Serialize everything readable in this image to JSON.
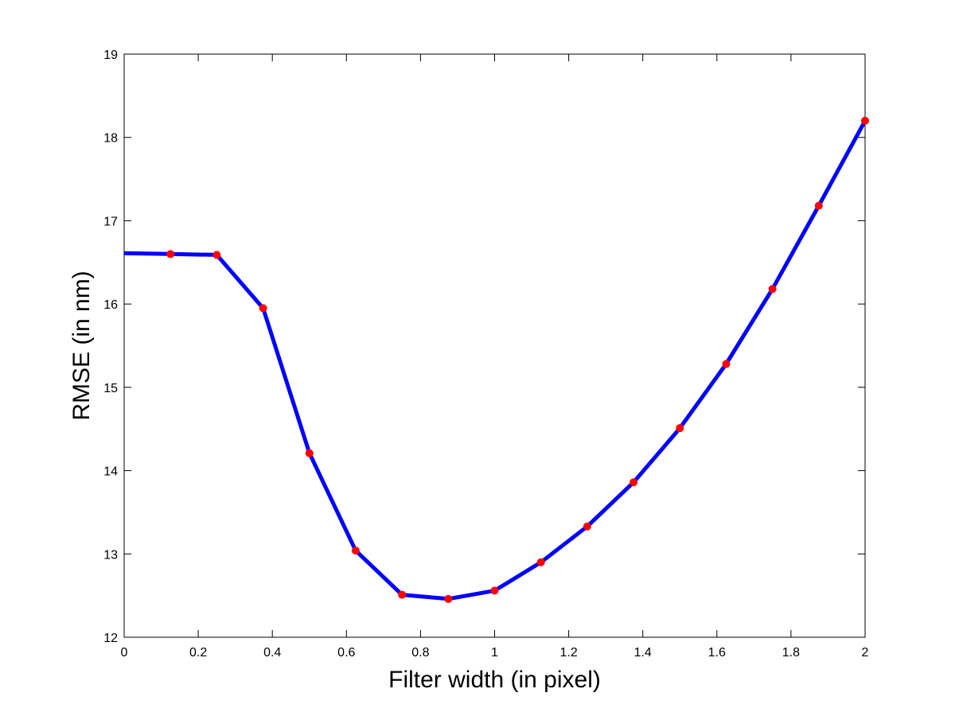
{
  "chart_data": {
    "type": "line",
    "title": "",
    "xlabel": "Filter width (in pixel)",
    "ylabel": "RMSE (in nm)",
    "xlim": [
      0,
      2
    ],
    "ylim": [
      12,
      19
    ],
    "x_ticks": [
      0,
      0.2,
      0.4,
      0.6,
      0.8,
      1,
      1.2,
      1.4,
      1.6,
      1.8,
      2
    ],
    "x_tick_labels": [
      "0",
      "0.2",
      "0.4",
      "0.6",
      "0.8",
      "1",
      "1.2",
      "1.4",
      "1.6",
      "1.8",
      "2"
    ],
    "y_ticks": [
      12,
      13,
      14,
      15,
      16,
      17,
      18,
      19
    ],
    "y_tick_labels": [
      "12",
      "13",
      "14",
      "15",
      "16",
      "17",
      "18",
      "19"
    ],
    "grid": false,
    "legend": "none",
    "series": [
      {
        "line_color": "#0000ff",
        "marker_color": "#ff0000",
        "x": [
          0,
          0.125,
          0.25,
          0.375,
          0.5,
          0.625,
          0.75,
          0.875,
          1,
          1.125,
          1.25,
          1.375,
          1.5,
          1.625,
          1.75,
          1.875,
          2
        ],
        "y": [
          16.61,
          16.6,
          16.59,
          15.95,
          14.21,
          13.04,
          12.51,
          12.46,
          12.56,
          12.9,
          13.33,
          13.86,
          14.51,
          15.28,
          16.18,
          17.18,
          18.2
        ],
        "markers_from_index": 1
      }
    ]
  }
}
